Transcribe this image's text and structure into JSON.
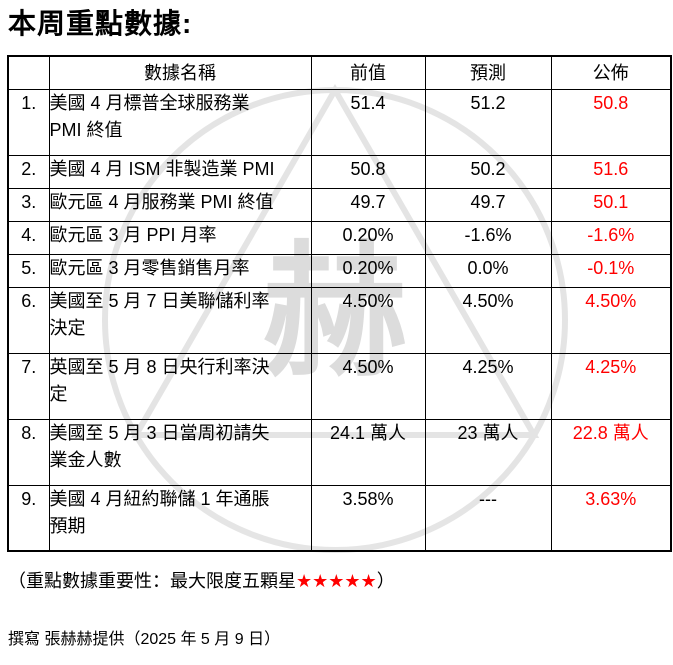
{
  "title": "本周重點數據:",
  "watermark": {
    "character": "赫",
    "line_color": "#cfcfcf",
    "character_color": "#d6d6d6"
  },
  "table": {
    "headers": {
      "index": "",
      "name": "數據名稱",
      "previous": "前值",
      "forecast": "預測",
      "published": "公佈"
    },
    "published_color": "#ff0000",
    "rows": [
      {
        "num": "1.",
        "name_lines": [
          "美國 4 月標普全球服務業",
          "PMI 終值"
        ],
        "previous": "51.4",
        "forecast": "51.2",
        "published": "50.8"
      },
      {
        "num": "2.",
        "name_lines": [
          "美國 4 月 ISM 非製造業 PMI"
        ],
        "previous": "50.8",
        "forecast": "50.2",
        "published": "51.6"
      },
      {
        "num": "3.",
        "name_lines": [
          "歐元區 4 月服務業 PMI 終值"
        ],
        "previous": "49.7",
        "forecast": "49.7",
        "published": "50.1"
      },
      {
        "num": "4.",
        "name_lines": [
          "歐元區 3 月 PPI 月率"
        ],
        "previous": "0.20%",
        "forecast": "-1.6%",
        "published": "-1.6%"
      },
      {
        "num": "5.",
        "name_lines": [
          "歐元區 3 月零售銷售月率"
        ],
        "previous": "0.20%",
        "forecast": "0.0%",
        "published": "-0.1%"
      },
      {
        "num": "6.",
        "name_lines": [
          "美國至 5 月 7 日美聯儲利率",
          "決定"
        ],
        "previous": "4.50%",
        "forecast": "4.50%",
        "published": "4.50%"
      },
      {
        "num": "7.",
        "name_lines": [
          "英國至 5 月 8 日央行利率決",
          "定"
        ],
        "previous": "4.50%",
        "forecast": "4.25%",
        "published": "4.25%"
      },
      {
        "num": "8.",
        "name_lines": [
          "美國至 5 月 3 日當周初請失",
          "業金人數"
        ],
        "previous": "24.1 萬人",
        "forecast": "23 萬人",
        "published": "22.8 萬人"
      },
      {
        "num": "9.",
        "name_lines": [
          "美國 4 月紐約聯儲 1 年通脹",
          "預期"
        ],
        "previous": "3.58%",
        "forecast": "---",
        "published": "3.63%"
      }
    ]
  },
  "footnote": {
    "prefix": "（重點數據重要性：最大限度五顆星",
    "stars": "★★★★★",
    "suffix": "）",
    "stars_color": "#ff0000"
  },
  "credit": "撰寫 張赫赫提供（2025 年 5 月 9 日）"
}
